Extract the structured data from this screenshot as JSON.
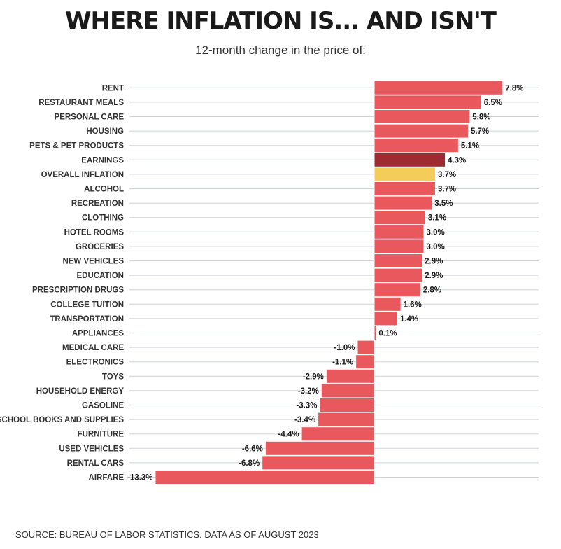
{
  "title": "WHERE INFLATION IS... AND ISN'T",
  "subtitle": "12-month change in the price of:",
  "source": "SOURCE: BUREAU OF LABOR STATISTICS. DATA AS OF AUGUST 2023",
  "colors": {
    "default": "#e8585c",
    "earnings": "#9e2a32",
    "overall": "#f3cc5a",
    "gridline": "#cfd3da",
    "zero_line": "#ffffff"
  },
  "chart_data": {
    "type": "bar",
    "orientation": "horizontal",
    "grid": true,
    "categories": [
      "RENT",
      "RESTAURANT MEALS",
      "PERSONAL CARE",
      "HOUSING",
      "PETS & PET PRODUCTS",
      "EARNINGS",
      "OVERALL INFLATION",
      "ALCOHOL",
      "RECREATION",
      "CLOTHING",
      "HOTEL ROOMS",
      "GROCERIES",
      "NEW VEHICLES",
      "EDUCATION",
      "PRESCRIPTION DRUGS",
      "COLLEGE TUITION",
      "TRANSPORTATION",
      "APPLIANCES",
      "MEDICAL CARE",
      "ELECTRONICS",
      "TOYS",
      "HOUSEHOLD ENERGY",
      "GASOLINE",
      "SCHOOL BOOKS AND SUPPLIES",
      "FURNITURE",
      "USED VEHICLES",
      "RENTAL CARS",
      "AIRFARE"
    ],
    "values": [
      7.8,
      6.5,
      5.8,
      5.7,
      5.1,
      4.3,
      3.7,
      3.7,
      3.5,
      3.1,
      3.0,
      3.0,
      2.9,
      2.9,
      2.8,
      1.6,
      1.4,
      0.1,
      -1.0,
      -1.1,
      -2.9,
      -3.2,
      -3.3,
      -3.4,
      -4.4,
      -6.6,
      -6.8,
      -13.3
    ],
    "labels": [
      "7.8%",
      "6.5%",
      "5.8%",
      "5.7%",
      "5.1%",
      "4.3%",
      "3.7%",
      "3.7%",
      "3.5%",
      "3.1%",
      "3.0%",
      "3.0%",
      "2.9%",
      "2.9%",
      "2.8%",
      "1.6%",
      "1.4%",
      "0.1%",
      "-1.0%",
      "-1.1%",
      "-2.9%",
      "-3.2%",
      "-3.3%",
      "-3.4%",
      "-4.4%",
      "-6.6%",
      "-6.8%",
      "-13.3%"
    ],
    "highlight": {
      "EARNINGS": "earnings",
      "OVERALL INFLATION": "overall"
    },
    "xlim": [
      -13.3,
      10.0
    ]
  }
}
